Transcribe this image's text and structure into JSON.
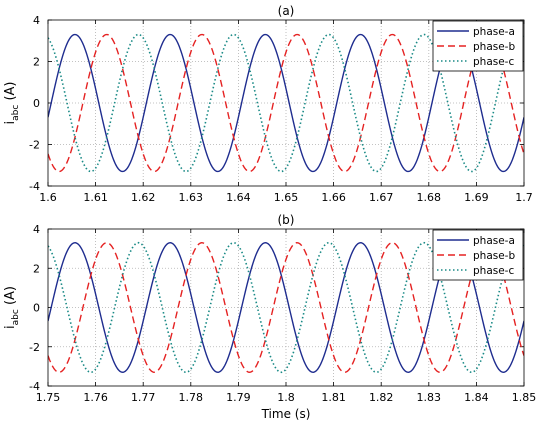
{
  "chart_data": [
    {
      "type": "line",
      "title": "(a)",
      "xlabel": "",
      "ylabel": "i",
      "ylabel_sub": "abc",
      "ylabel_unit": " (A)",
      "xlim": [
        1.6,
        1.7
      ],
      "ylim": [
        -4,
        4
      ],
      "xticks": [
        "1.6",
        "1.61",
        "1.62",
        "1.63",
        "1.64",
        "1.65",
        "1.66",
        "1.67",
        "1.68",
        "1.69",
        "1.7"
      ],
      "yticks": [
        "-4",
        "-2",
        "0",
        "2",
        "4"
      ],
      "grid": true,
      "legend_position": "top-right",
      "frequency_hz": 50,
      "series": [
        {
          "name": "phase-a",
          "amplitude": 3.3,
          "phase_deg": -12,
          "color": "#1f2d8f",
          "style": "solid"
        },
        {
          "name": "phase-b",
          "amplitude": 3.3,
          "phase_deg": -132,
          "color": "#e52222",
          "style": "dashed"
        },
        {
          "name": "phase-c",
          "amplitude": 3.3,
          "phase_deg": 108,
          "color": "#1a8a86",
          "style": "dotted"
        }
      ]
    },
    {
      "type": "line",
      "title": "(b)",
      "xlabel": "Time (s)",
      "ylabel": "i",
      "ylabel_sub": "abc",
      "ylabel_unit": " (A)",
      "xlim": [
        1.75,
        1.85
      ],
      "ylim": [
        -4,
        4
      ],
      "xticks": [
        "1.75",
        "1.76",
        "1.77",
        "1.78",
        "1.79",
        "1.8",
        "1.81",
        "1.82",
        "1.83",
        "1.84",
        "1.85"
      ],
      "yticks": [
        "-4",
        "-2",
        "0",
        "2",
        "4"
      ],
      "grid": true,
      "legend_position": "top-right",
      "frequency_hz": 50,
      "series": [
        {
          "name": "phase-a",
          "amplitude": 3.3,
          "phase_deg": 168,
          "color": "#1f2d8f",
          "style": "solid"
        },
        {
          "name": "phase-b",
          "amplitude": 3.3,
          "phase_deg": 48,
          "color": "#e52222",
          "style": "dashed"
        },
        {
          "name": "phase-c",
          "amplitude": 3.3,
          "phase_deg": -72,
          "color": "#1a8a86",
          "style": "dotted"
        }
      ]
    }
  ]
}
